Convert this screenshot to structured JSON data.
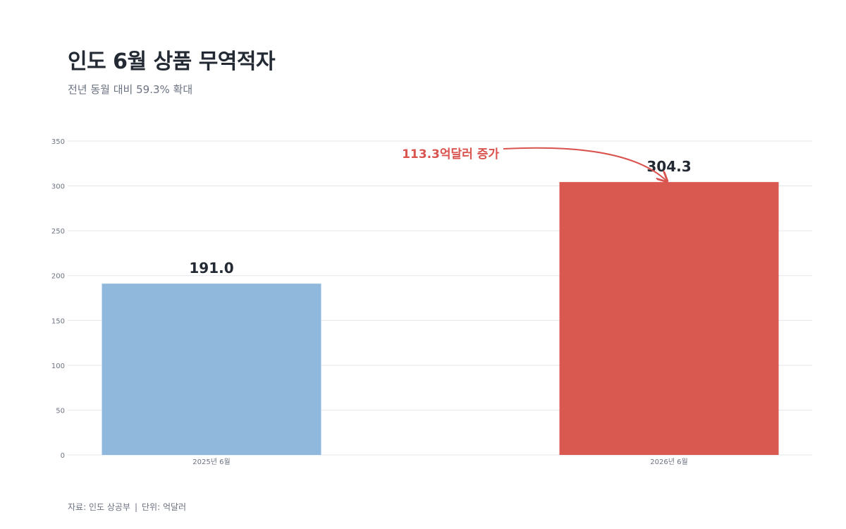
{
  "title": "인도 6월 상품 무역적자",
  "subtitle": "전년 동월 대비 59.3% 확대",
  "source": {
    "source_label": "자료: 인도 상공부",
    "separator": "|",
    "unit_label": "단위: 억달러"
  },
  "annotation": {
    "text": "113.3억달러 증가",
    "color": "#d9534f"
  },
  "colors": {
    "bar_2025": "#8fb8dc",
    "bar_2026": "#d95850",
    "grid": "#e3e6ea",
    "tick_text": "#6b7280",
    "value_text": "#232a33"
  },
  "chart_data": {
    "type": "bar",
    "title": "인도 6월 상품 무역적자",
    "subtitle": "전년 동월 대비 59.3% 확대",
    "categories": [
      "2025년 6월",
      "2026년 6월"
    ],
    "values": [
      191.0,
      304.3
    ],
    "value_labels": [
      "191.0",
      "304.3"
    ],
    "ylim": [
      0,
      350
    ],
    "yticks": [
      0,
      50,
      100,
      150,
      200,
      250,
      300,
      350
    ],
    "grid": true,
    "xlabel": "",
    "ylabel": ""
  }
}
